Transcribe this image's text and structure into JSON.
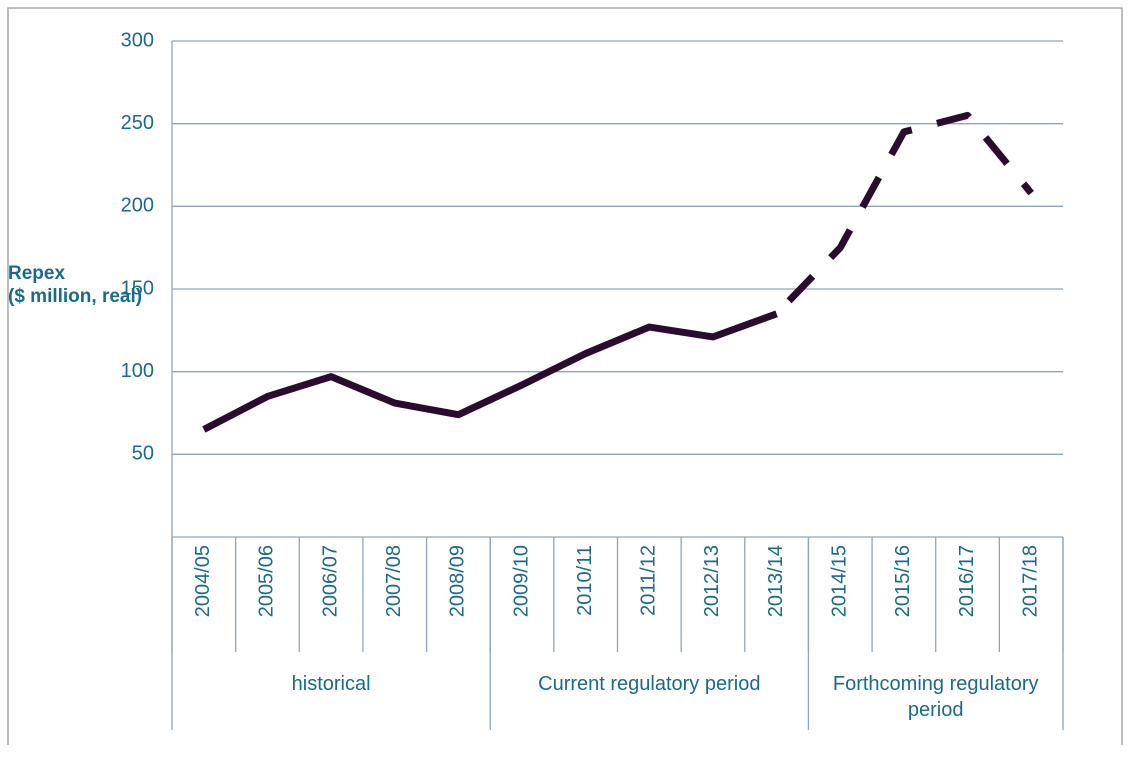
{
  "chart_data": {
    "type": "line",
    "y_label": "Repex\n($ million, real)",
    "categories": [
      "2004/05",
      "2005/06",
      "2006/07",
      "2007/08",
      "2008/09",
      "2009/10",
      "2010/11",
      "2011/12",
      "2012/13",
      "2013/14",
      "2014/15",
      "2015/16",
      "2016/17",
      "2017/18"
    ],
    "groups": [
      {
        "label": "historical",
        "span": 5
      },
      {
        "label": "Current regulatory period",
        "span": 5
      },
      {
        "label": "Forthcoming regulatory period",
        "span": 4
      }
    ],
    "series": [
      {
        "color": "#2b0b2e",
        "dashed": false,
        "values": [
          65,
          85,
          97,
          81,
          74,
          92,
          111,
          127,
          121,
          135,
          null,
          null,
          null,
          null
        ]
      },
      {
        "color": "#2b0b2e",
        "dashed": true,
        "values": [
          null,
          null,
          null,
          null,
          null,
          null,
          null,
          null,
          null,
          135,
          175,
          245,
          255,
          208
        ]
      }
    ],
    "ylim": [
      0,
      300
    ],
    "yticks": [
      50,
      100,
      150,
      200,
      250,
      300
    ],
    "grid": true
  }
}
